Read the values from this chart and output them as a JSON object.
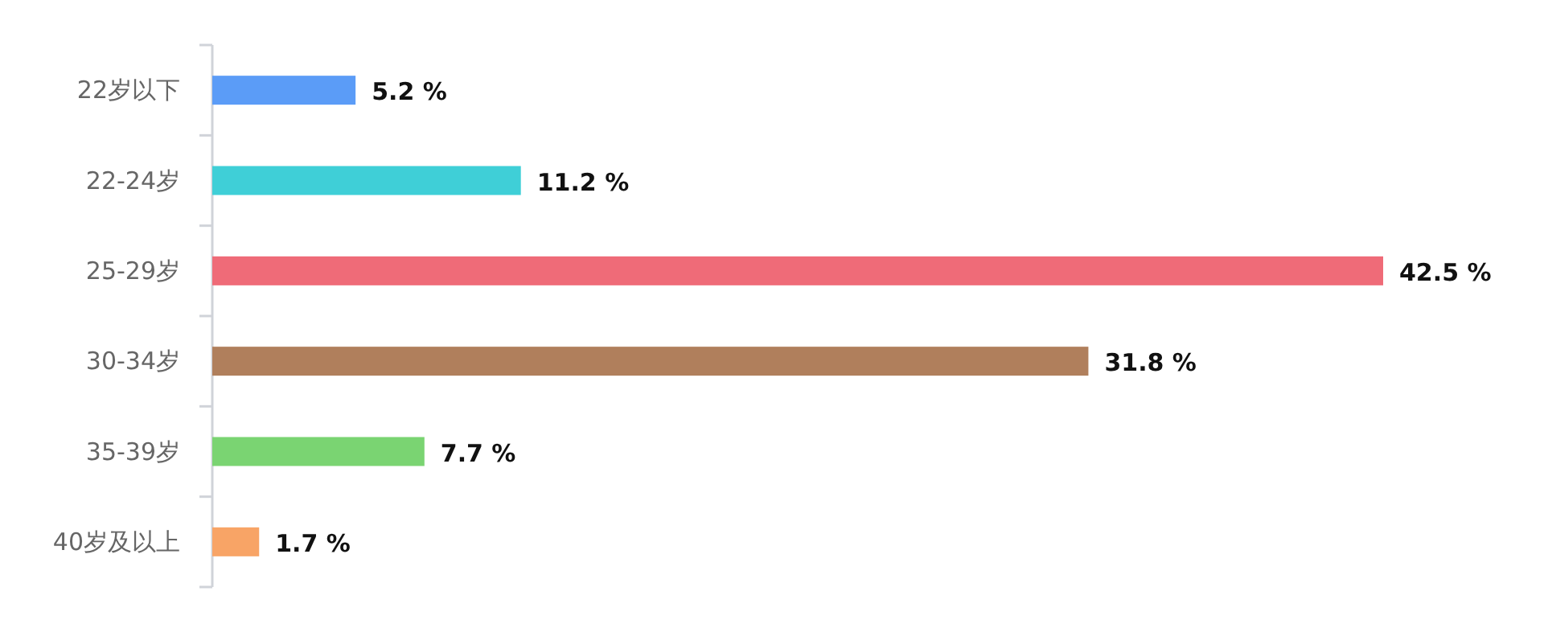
{
  "chart_data": {
    "type": "bar",
    "orientation": "horizontal",
    "categories": [
      "22岁以下",
      "22-24岁",
      "25-29岁",
      "30-34岁",
      "35-39岁",
      "40岁及以上"
    ],
    "values": [
      5.2,
      11.2,
      42.5,
      31.8,
      7.7,
      1.7
    ],
    "colors": [
      "#5b9cf7",
      "#3fcfd7",
      "#ef6b78",
      "#b07f5c",
      "#7ad472",
      "#f8a466"
    ],
    "value_labels": [
      "5.2 %",
      "11.2 %",
      "42.5 %",
      "31.8 %",
      "7.7 %",
      "1.7 %"
    ]
  }
}
